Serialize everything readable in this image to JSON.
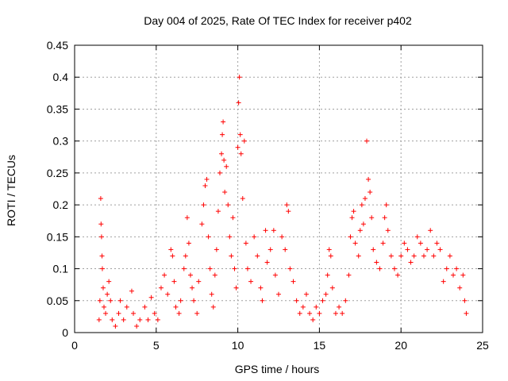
{
  "chart_data": {
    "type": "scatter",
    "title": "Day 004 of 2025, Rate Of TEC Index for receiver p402",
    "xlabel": "GPS time / hours",
    "ylabel": "ROTI / TECUs",
    "xlim": [
      0,
      25
    ],
    "ylim": [
      0,
      0.45
    ],
    "xticks": [
      0,
      5,
      10,
      15,
      20,
      25
    ],
    "xtick_labels": [
      "0",
      "5",
      "10",
      "15",
      "20",
      "25"
    ],
    "yticks": [
      0,
      0.05,
      0.1,
      0.15,
      0.2,
      0.25,
      0.3,
      0.35,
      0.4,
      0.45
    ],
    "ytick_labels": [
      "0",
      "0.05",
      "0.1",
      "0.15",
      "0.2",
      "0.25",
      "0.3",
      "0.35",
      "0.4",
      "0.45"
    ],
    "grid": true,
    "marker": "+",
    "color": "#ff0000",
    "series": [
      {
        "name": "ROTI",
        "points": [
          [
            1.5,
            0.02
          ],
          [
            1.55,
            0.05
          ],
          [
            1.6,
            0.21
          ],
          [
            1.62,
            0.17
          ],
          [
            1.65,
            0.15
          ],
          [
            1.68,
            0.12
          ],
          [
            1.7,
            0.1
          ],
          [
            1.75,
            0.07
          ],
          [
            1.8,
            0.04
          ],
          [
            1.9,
            0.03
          ],
          [
            2.0,
            0.06
          ],
          [
            2.1,
            0.08
          ],
          [
            2.2,
            0.05
          ],
          [
            2.3,
            0.02
          ],
          [
            2.5,
            0.01
          ],
          [
            2.7,
            0.03
          ],
          [
            2.8,
            0.05
          ],
          [
            3.0,
            0.02
          ],
          [
            3.2,
            0.04
          ],
          [
            3.5,
            0.065
          ],
          [
            3.6,
            0.03
          ],
          [
            3.8,
            0.01
          ],
          [
            4.0,
            0.02
          ],
          [
            4.3,
            0.04
          ],
          [
            4.5,
            0.02
          ],
          [
            4.7,
            0.055
          ],
          [
            4.9,
            0.03
          ],
          [
            5.1,
            0.02
          ],
          [
            5.3,
            0.07
          ],
          [
            5.5,
            0.09
          ],
          [
            5.7,
            0.06
          ],
          [
            5.9,
            0.13
          ],
          [
            6.0,
            0.12
          ],
          [
            6.1,
            0.08
          ],
          [
            6.2,
            0.04
          ],
          [
            6.4,
            0.03
          ],
          [
            6.5,
            0.05
          ],
          [
            6.7,
            0.1
          ],
          [
            6.8,
            0.12
          ],
          [
            6.9,
            0.18
          ],
          [
            7.0,
            0.14
          ],
          [
            7.1,
            0.09
          ],
          [
            7.2,
            0.07
          ],
          [
            7.3,
            0.05
          ],
          [
            7.5,
            0.03
          ],
          [
            7.6,
            0.08
          ],
          [
            7.8,
            0.17
          ],
          [
            7.9,
            0.2
          ],
          [
            8.0,
            0.23
          ],
          [
            8.1,
            0.24
          ],
          [
            8.2,
            0.15
          ],
          [
            8.3,
            0.1
          ],
          [
            8.4,
            0.06
          ],
          [
            8.5,
            0.04
          ],
          [
            8.6,
            0.09
          ],
          [
            8.7,
            0.13
          ],
          [
            8.8,
            0.19
          ],
          [
            8.9,
            0.25
          ],
          [
            9.0,
            0.28
          ],
          [
            9.05,
            0.31
          ],
          [
            9.1,
            0.33
          ],
          [
            9.15,
            0.27
          ],
          [
            9.2,
            0.22
          ],
          [
            9.3,
            0.26
          ],
          [
            9.4,
            0.2
          ],
          [
            9.5,
            0.15
          ],
          [
            9.6,
            0.12
          ],
          [
            9.7,
            0.18
          ],
          [
            9.8,
            0.1
          ],
          [
            9.9,
            0.07
          ],
          [
            10.0,
            0.29
          ],
          [
            10.05,
            0.36
          ],
          [
            10.1,
            0.4
          ],
          [
            10.15,
            0.31
          ],
          [
            10.2,
            0.28
          ],
          [
            10.3,
            0.21
          ],
          [
            10.4,
            0.3
          ],
          [
            10.5,
            0.14
          ],
          [
            10.6,
            0.1
          ],
          [
            10.8,
            0.08
          ],
          [
            11.0,
            0.15
          ],
          [
            11.2,
            0.12
          ],
          [
            11.4,
            0.07
          ],
          [
            11.5,
            0.05
          ],
          [
            11.7,
            0.16
          ],
          [
            11.8,
            0.11
          ],
          [
            12.0,
            0.13
          ],
          [
            12.2,
            0.16
          ],
          [
            12.3,
            0.09
          ],
          [
            12.5,
            0.06
          ],
          [
            12.7,
            0.15
          ],
          [
            12.9,
            0.13
          ],
          [
            13.0,
            0.2
          ],
          [
            13.1,
            0.19
          ],
          [
            13.2,
            0.1
          ],
          [
            13.4,
            0.08
          ],
          [
            13.6,
            0.05
          ],
          [
            13.8,
            0.03
          ],
          [
            14.0,
            0.04
          ],
          [
            14.2,
            0.06
          ],
          [
            14.4,
            0.03
          ],
          [
            14.6,
            0.02
          ],
          [
            14.8,
            0.04
          ],
          [
            15.0,
            0.03
          ],
          [
            15.2,
            0.05
          ],
          [
            15.4,
            0.06
          ],
          [
            15.5,
            0.09
          ],
          [
            15.6,
            0.13
          ],
          [
            15.7,
            0.12
          ],
          [
            15.8,
            0.07
          ],
          [
            16.0,
            0.03
          ],
          [
            16.2,
            0.04
          ],
          [
            16.4,
            0.03
          ],
          [
            16.6,
            0.05
          ],
          [
            16.8,
            0.09
          ],
          [
            16.9,
            0.15
          ],
          [
            17.0,
            0.18
          ],
          [
            17.1,
            0.19
          ],
          [
            17.2,
            0.14
          ],
          [
            17.4,
            0.12
          ],
          [
            17.5,
            0.16
          ],
          [
            17.6,
            0.2
          ],
          [
            17.7,
            0.17
          ],
          [
            17.8,
            0.21
          ],
          [
            17.9,
            0.3
          ],
          [
            18.0,
            0.24
          ],
          [
            18.1,
            0.22
          ],
          [
            18.2,
            0.18
          ],
          [
            18.3,
            0.13
          ],
          [
            18.5,
            0.11
          ],
          [
            18.7,
            0.1
          ],
          [
            18.9,
            0.14
          ],
          [
            19.0,
            0.18
          ],
          [
            19.1,
            0.2
          ],
          [
            19.2,
            0.16
          ],
          [
            19.4,
            0.12
          ],
          [
            19.6,
            0.1
          ],
          [
            19.8,
            0.09
          ],
          [
            20.0,
            0.12
          ],
          [
            20.2,
            0.14
          ],
          [
            20.4,
            0.13
          ],
          [
            20.6,
            0.11
          ],
          [
            20.8,
            0.12
          ],
          [
            21.0,
            0.15
          ],
          [
            21.2,
            0.14
          ],
          [
            21.4,
            0.12
          ],
          [
            21.6,
            0.13
          ],
          [
            21.8,
            0.16
          ],
          [
            22.0,
            0.12
          ],
          [
            22.2,
            0.14
          ],
          [
            22.4,
            0.13
          ],
          [
            22.6,
            0.08
          ],
          [
            22.8,
            0.1
          ],
          [
            23.0,
            0.12
          ],
          [
            23.2,
            0.09
          ],
          [
            23.4,
            0.1
          ],
          [
            23.6,
            0.07
          ],
          [
            23.8,
            0.09
          ],
          [
            23.9,
            0.05
          ],
          [
            24.0,
            0.03
          ]
        ]
      }
    ]
  }
}
